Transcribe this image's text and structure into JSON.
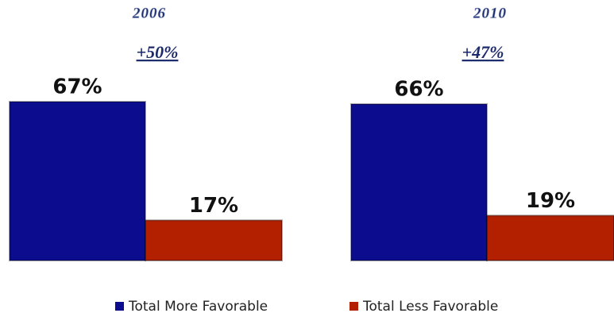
{
  "chart_data": {
    "type": "bar",
    "categories": [
      "2006",
      "2010"
    ],
    "annotations": [
      "+50%",
      "+47%"
    ],
    "series": [
      {
        "name": "Total More Favorable",
        "color": "#0c0c8e",
        "values": [
          67,
          66
        ],
        "value_labels": [
          "67%",
          "66%"
        ]
      },
      {
        "name": "Total Less Favorable",
        "color": "#b22000",
        "values": [
          17,
          19
        ],
        "value_labels": [
          "17%",
          "19%"
        ]
      }
    ]
  }
}
